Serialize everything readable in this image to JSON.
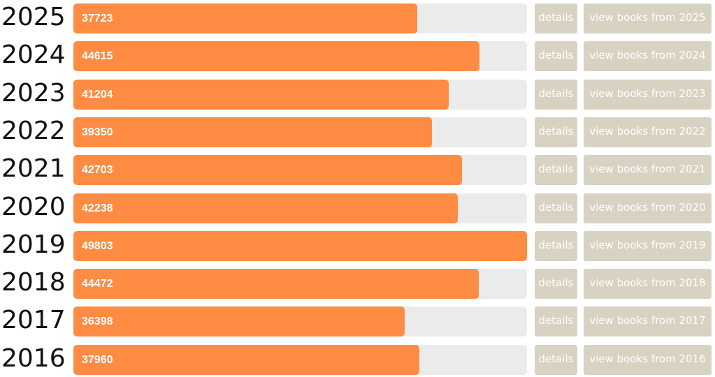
{
  "rows": [
    {
      "year": "2025",
      "count": 37723,
      "details": "details",
      "view": "view books from 2025"
    },
    {
      "year": "2024",
      "count": 44615,
      "details": "details",
      "view": "view books from 2024"
    },
    {
      "year": "2023",
      "count": 41204,
      "details": "details",
      "view": "view books from 2023"
    },
    {
      "year": "2022",
      "count": 39350,
      "details": "details",
      "view": "view books from 2022"
    },
    {
      "year": "2021",
      "count": 42703,
      "details": "details",
      "view": "view books from 2021"
    },
    {
      "year": "2020",
      "count": 42238,
      "details": "details",
      "view": "view books from 2020"
    },
    {
      "year": "2019",
      "count": 49803,
      "details": "details",
      "view": "view books from 2019"
    },
    {
      "year": "2018",
      "count": 44472,
      "details": "details",
      "view": "view books from 2018"
    },
    {
      "year": "2017",
      "count": 36398,
      "details": "details",
      "view": "view books from 2017"
    },
    {
      "year": "2016",
      "count": 37960,
      "details": "details",
      "view": "view books from 2016"
    }
  ]
}
